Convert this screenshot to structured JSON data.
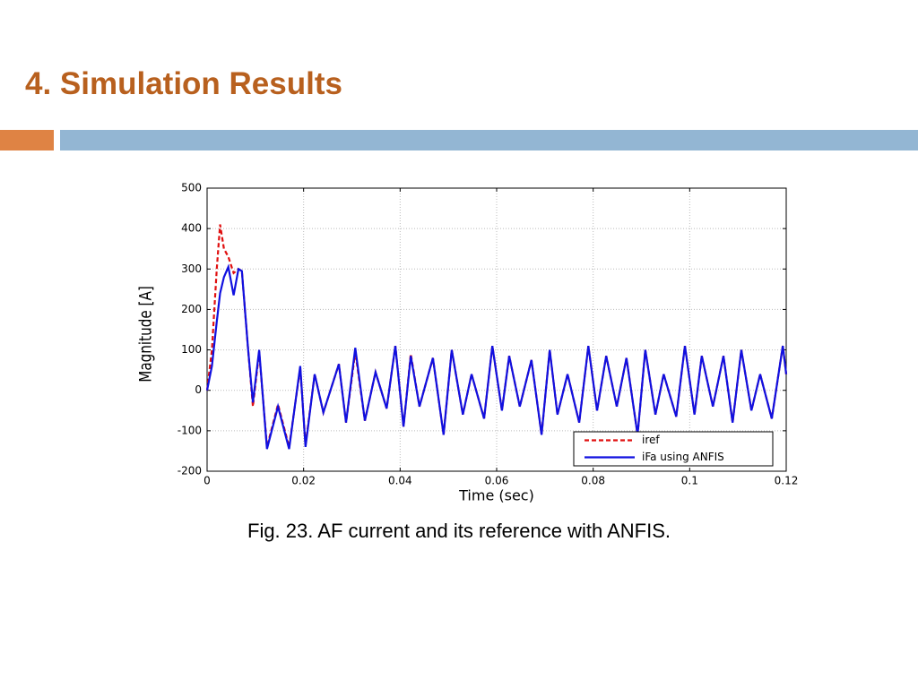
{
  "slide": {
    "title": "4. Simulation Results",
    "caption": "Fig. 23. AF current and its reference with ANFIS."
  },
  "chart_data": {
    "type": "line",
    "x_label": "Time (sec)",
    "y_label": "Magnitude [A]",
    "x": [
      0,
      0.001,
      0.002,
      0.0027,
      0.0035,
      0.0044,
      0.0055,
      0.0065,
      0.0072,
      0.0085,
      0.0095,
      0.0108,
      0.0124,
      0.0147,
      0.017,
      0.0193,
      0.0204,
      0.0223,
      0.0241,
      0.0273,
      0.0288,
      0.0307,
      0.0327,
      0.0349,
      0.0372,
      0.039,
      0.0407,
      0.0422,
      0.044,
      0.0468,
      0.049,
      0.0507,
      0.053,
      0.0548,
      0.0574,
      0.0591,
      0.0611,
      0.0626,
      0.0648,
      0.0672,
      0.0693,
      0.071,
      0.0726,
      0.0747,
      0.0771,
      0.079,
      0.0808,
      0.0827,
      0.0849,
      0.0869,
      0.0892,
      0.0908,
      0.0929,
      0.0946,
      0.0972,
      0.099,
      0.101,
      0.1025,
      0.1048,
      0.107,
      0.1089,
      0.1107,
      0.1128,
      0.1146,
      0.117,
      0.1193,
      0.12
    ],
    "series": [
      {
        "name": "iref",
        "color": "#e01010",
        "dash": true,
        "values": [
          0,
          100,
          300,
          410,
          350,
          330,
          290,
          300,
          295,
          100,
          -40,
          95,
          -140,
          -35,
          -140,
          55,
          -135,
          40,
          -55,
          65,
          -80,
          95,
          -75,
          45,
          -45,
          110,
          -90,
          90,
          -40,
          80,
          -110,
          100,
          -60,
          40,
          -70,
          110,
          -50,
          85,
          -40,
          75,
          -110,
          100,
          -60,
          40,
          -80,
          110,
          -50,
          85,
          -40,
          80,
          -110,
          100,
          -60,
          40,
          -65,
          110,
          -60,
          85,
          -40,
          85,
          -80,
          100,
          -50,
          40,
          -70,
          110,
          40
        ]
      },
      {
        "name": "iFa using ANFIS",
        "color": "#1010e0",
        "dash": false,
        "values": [
          0,
          60,
          170,
          240,
          280,
          305,
          235,
          300,
          295,
          100,
          -30,
          100,
          -145,
          -40,
          -145,
          60,
          -140,
          40,
          -55,
          65,
          -80,
          105,
          -75,
          45,
          -45,
          110,
          -90,
          85,
          -40,
          80,
          -110,
          100,
          -60,
          40,
          -70,
          110,
          -50,
          85,
          -40,
          75,
          -110,
          100,
          -60,
          40,
          -80,
          110,
          -50,
          85,
          -40,
          80,
          -110,
          100,
          -60,
          40,
          -65,
          110,
          -60,
          85,
          -40,
          85,
          -80,
          100,
          -50,
          40,
          -70,
          110,
          40
        ]
      }
    ],
    "xlim": [
      0,
      0.12
    ],
    "xticks": [
      0,
      0.02,
      0.04,
      0.06,
      0.08,
      0.1,
      0.12
    ],
    "ylim": [
      -200,
      500
    ],
    "yticks": [
      -200,
      -100,
      0,
      100,
      200,
      300,
      400,
      500
    ],
    "grid": true,
    "legend": "lower right"
  }
}
